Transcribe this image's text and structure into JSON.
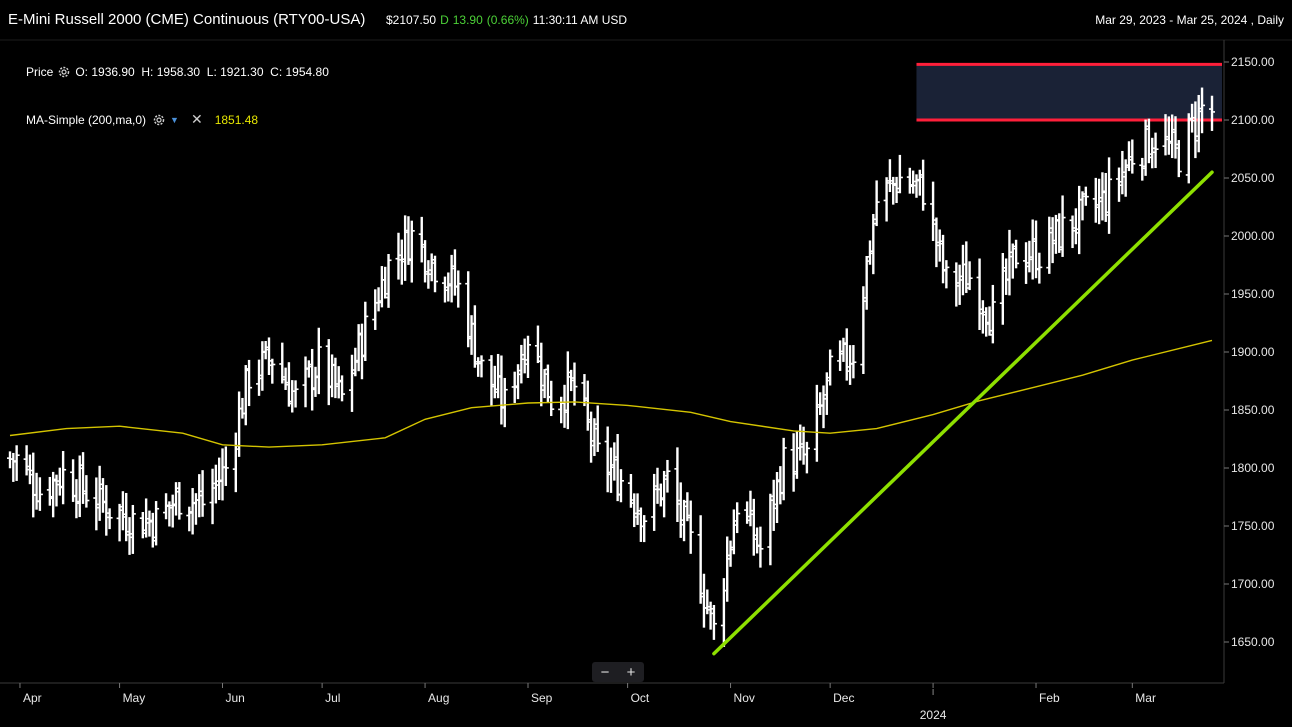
{
  "header": {
    "title": "E-Mini Russell 2000 (CME) Continuous (RTY00-USA)",
    "price": "$2107.50",
    "flag": "D",
    "change": "13.90",
    "change_pct": "(0.66%)",
    "time": "11:30:11 AM USD",
    "range": "Mar 29, 2023 - Mar 25, 2024 , Daily"
  },
  "legend": {
    "price_label": "Price",
    "ohlc": "O: 1936.90  H: 1958.30  L: 1921.30  C: 1954.80",
    "ma_label": "MA-Simple (200,ma,0)",
    "ma_value": "1851.48"
  },
  "icons": [
    "gear-icon",
    "chevron-down-icon",
    "close-icon",
    "zoom-out-icon",
    "zoom-in-icon"
  ],
  "zoom": {
    "minus": "−",
    "plus": "+"
  },
  "colors": {
    "bars": "#ffffff",
    "ma": "#d4c400",
    "trendline": "#8ee000",
    "resistance": "#ff1f3a",
    "zone": "#1a2236",
    "up": "#4cd137"
  },
  "chart_data": {
    "type": "ohlc",
    "title": "E-Mini Russell 2000 (CME) Continuous (RTY00-USA)",
    "ylim": [
      1620,
      2160
    ],
    "y_ticks": [
      "2150.00",
      "2100.00",
      "2050.00",
      "2000.00",
      "1950.00",
      "1900.00",
      "1850.00",
      "1800.00",
      "1750.00",
      "1700.00",
      "1650.00"
    ],
    "x_ticks": [
      "Apr",
      "May",
      "Jun",
      "Jul",
      "Aug",
      "Sep",
      "Oct",
      "Nov",
      "Dec",
      "2024",
      "Feb",
      "Mar"
    ],
    "x_tick_dates": [
      "2023-04-01",
      "2023-05-01",
      "2023-06-01",
      "2023-07-01",
      "2023-08-01",
      "2023-09-01",
      "2023-10-01",
      "2023-11-01",
      "2023-12-01",
      "2024-01-01",
      "2024-02-01",
      "2024-03-01"
    ],
    "x_range": [
      "2023-03-29",
      "2024-03-25"
    ],
    "closes_weekly": [
      [
        "2023-03-31",
        1808
      ],
      [
        "2023-04-07",
        1780
      ],
      [
        "2023-04-14",
        1795
      ],
      [
        "2023-04-21",
        1780
      ],
      [
        "2023-04-28",
        1765
      ],
      [
        "2023-05-05",
        1755
      ],
      [
        "2023-05-12",
        1755
      ],
      [
        "2023-05-19",
        1775
      ],
      [
        "2023-05-26",
        1770
      ],
      [
        "2023-06-02",
        1800
      ],
      [
        "2023-06-09",
        1880
      ],
      [
        "2023-06-16",
        1895
      ],
      [
        "2023-06-23",
        1860
      ],
      [
        "2023-06-30",
        1890
      ],
      [
        "2023-07-07",
        1860
      ],
      [
        "2023-07-14",
        1920
      ],
      [
        "2023-07-21",
        1975
      ],
      [
        "2023-07-28",
        2000
      ],
      [
        "2023-08-04",
        1975
      ],
      [
        "2023-08-11",
        1955
      ],
      [
        "2023-08-18",
        1885
      ],
      [
        "2023-08-25",
        1855
      ],
      [
        "2023-09-01",
        1915
      ],
      [
        "2023-09-08",
        1860
      ],
      [
        "2023-09-15",
        1870
      ],
      [
        "2023-09-22",
        1810
      ],
      [
        "2023-09-29",
        1790
      ],
      [
        "2023-10-06",
        1760
      ],
      [
        "2023-10-13",
        1790
      ],
      [
        "2023-10-20",
        1735
      ],
      [
        "2023-10-27",
        1660
      ],
      [
        "2023-11-03",
        1770
      ],
      [
        "2023-11-10",
        1730
      ],
      [
        "2023-11-17",
        1805
      ],
      [
        "2023-11-24",
        1810
      ],
      [
        "2023-12-01",
        1880
      ],
      [
        "2023-12-08",
        1900
      ],
      [
        "2023-12-15",
        2030
      ],
      [
        "2023-12-22",
        2050
      ],
      [
        "2023-12-29",
        2040
      ],
      [
        "2024-01-05",
        1960
      ],
      [
        "2024-01-12",
        1965
      ],
      [
        "2024-01-19",
        1930
      ],
      [
        "2024-01-26",
        1985
      ],
      [
        "2024-02-02",
        1985
      ],
      [
        "2024-02-09",
        2005
      ],
      [
        "2024-02-16",
        2020
      ],
      [
        "2024-02-23",
        2035
      ],
      [
        "2024-03-01",
        2070
      ],
      [
        "2024-03-08",
        2085
      ],
      [
        "2024-03-15",
        2070
      ],
      [
        "2024-03-22",
        2110
      ],
      [
        "2024-03-25",
        2107.5
      ]
    ],
    "ma_200": [
      [
        "2023-03-29",
        1828
      ],
      [
        "2023-04-15",
        1834
      ],
      [
        "2023-05-01",
        1836
      ],
      [
        "2023-05-20",
        1830
      ],
      [
        "2023-06-01",
        1820
      ],
      [
        "2023-06-15",
        1818
      ],
      [
        "2023-07-01",
        1820
      ],
      [
        "2023-07-20",
        1826
      ],
      [
        "2023-08-01",
        1842
      ],
      [
        "2023-08-15",
        1852
      ],
      [
        "2023-09-01",
        1856
      ],
      [
        "2023-09-15",
        1857
      ],
      [
        "2023-10-01",
        1854
      ],
      [
        "2023-10-20",
        1848
      ],
      [
        "2023-11-01",
        1840
      ],
      [
        "2023-11-20",
        1832
      ],
      [
        "2023-12-01",
        1830
      ],
      [
        "2023-12-15",
        1834
      ],
      [
        "2024-01-01",
        1846
      ],
      [
        "2024-01-15",
        1858
      ],
      [
        "2024-02-01",
        1870
      ],
      [
        "2024-02-15",
        1880
      ],
      [
        "2024-03-01",
        1893
      ],
      [
        "2024-03-25",
        1910
      ]
    ],
    "trendline": [
      [
        "2023-10-27",
        1640
      ],
      [
        "2024-03-25",
        2055
      ]
    ],
    "resistance_zone": {
      "start": "2023-12-27",
      "end": "2024-03-25",
      "top": 2148,
      "bottom": 2100
    }
  }
}
